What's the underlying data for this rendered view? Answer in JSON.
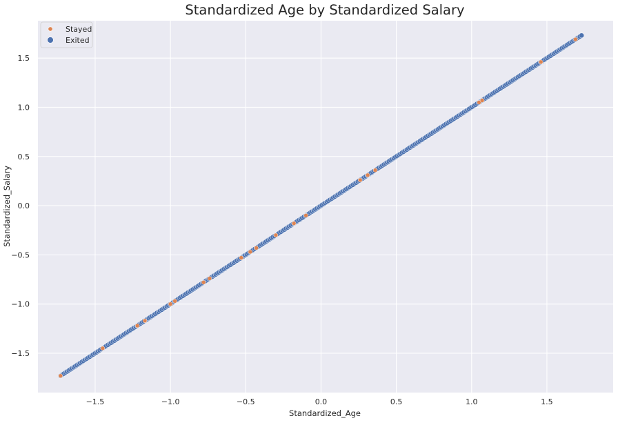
{
  "chart_data": {
    "type": "scatter",
    "title": "Standardized Age by Standardized Salary",
    "xlabel": "Standardized_Age",
    "ylabel": "Standardized_Salary",
    "xlim": [
      -1.88,
      1.94
    ],
    "ylim": [
      -1.9,
      1.88
    ],
    "xticks": [
      -1.5,
      -1.0,
      -0.5,
      0.0,
      0.5,
      1.0,
      1.5
    ],
    "xtick_labels": [
      "−1.5",
      "−1.0",
      "−0.5",
      "0.0",
      "0.5",
      "1.0",
      "1.5"
    ],
    "yticks": [
      -1.5,
      -1.0,
      -0.5,
      0.0,
      0.5,
      1.0,
      1.5
    ],
    "ytick_labels": [
      "−1.5",
      "−1.0",
      "−0.5",
      "0.0",
      "0.5",
      "1.0",
      "1.5"
    ],
    "grid": true,
    "legend_position": "top-left",
    "x_range_of_points": [
      -1.73,
      1.73
    ],
    "series": [
      {
        "name": "Stayed",
        "color": "#dd8452",
        "x": [
          -1.73,
          -1.45,
          -1.22,
          -1.17,
          -1.0,
          -0.97,
          -0.78,
          -0.74,
          -0.53,
          -0.47,
          -0.43,
          -0.3,
          -0.18,
          -0.1,
          0.26,
          0.31,
          0.36,
          1.05,
          1.07,
          1.46,
          1.69
        ],
        "y": [
          -1.73,
          -1.45,
          -1.22,
          -1.17,
          -1.0,
          -0.97,
          -0.78,
          -0.74,
          -0.53,
          -0.47,
          -0.43,
          -0.3,
          -0.18,
          -0.1,
          0.26,
          0.31,
          0.36,
          1.05,
          1.07,
          1.46,
          1.69
        ]
      },
      {
        "name": "Exited",
        "color": "#4c72b0",
        "note_points": "dense continuous line of points along y = x from -1.73 to 1.73"
      }
    ]
  }
}
